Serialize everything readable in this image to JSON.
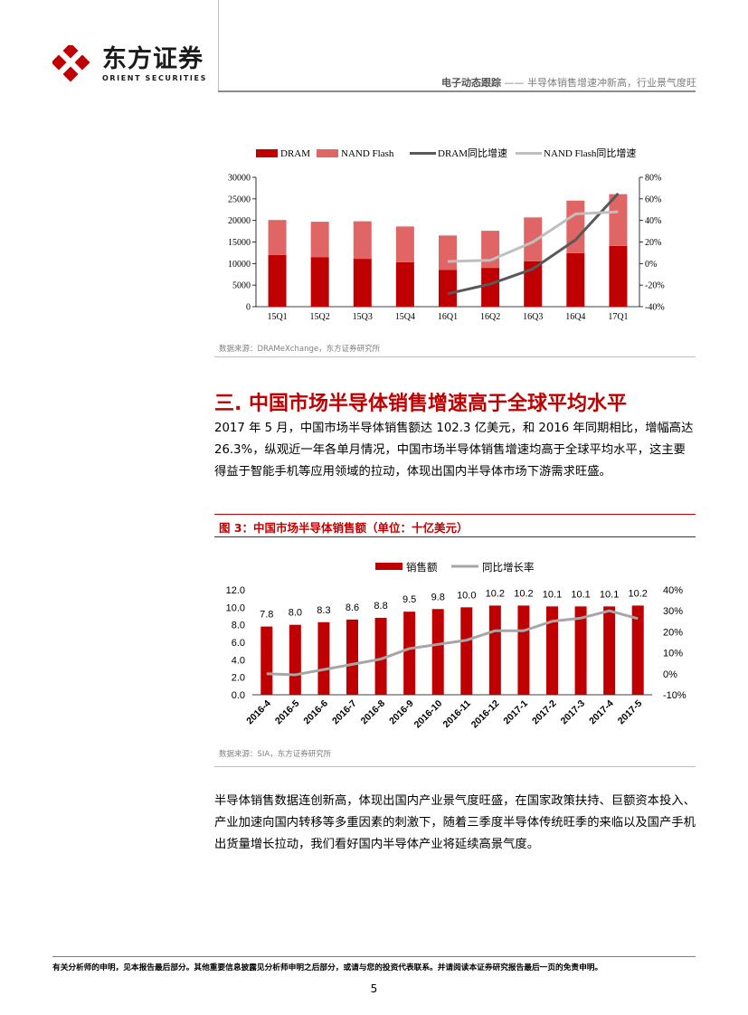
{
  "header": {
    "brand_cn": "东方证券",
    "brand_en": "ORIENT SECURITIES",
    "report_type": "电子动态跟踪",
    "report_subtitle": "—— 半导体销售增速冲新高，行业景气度旺"
  },
  "figure2": {
    "source": "数据来源：DRAMeXchange，东方证券研究所"
  },
  "section3": {
    "title": "三. 中国市场半导体销售增速高于全球平均水平",
    "paragraph": "2017 年 5 月，中国市场半导体销售额达 102.3 亿美元，和 2016 年同期相比，增幅高达 26.3%，纵观近一年各单月情况，中国市场半导体销售增速均高于全球平均水平，这主要得益于智能手机等应用领域的拉动，体现出国内半导体市场下游需求旺盛。"
  },
  "figure3": {
    "title": "图 3：中国市场半导体销售额（单位：十亿美元）",
    "source": "数据来源：SIA，东方证券研究所"
  },
  "closing_paragraph": "半导体销售数据连创新高，体现出国内产业景气度旺盛，在国家政策扶持、巨额资本投入、产业加速向国内转移等多重因素的刺激下，随着三季度半导体传统旺季的来临以及国产手机出货量增长拉动，我们看好国内半导体产业将延续高景气度。",
  "footer": {
    "disclaimer": "有关分析师的申明，见本报告最后部分。其他重要信息披露见分析师申明之后部分，或请与您的投资代表联系。并请阅读本证券研究报告最后一页的免责申明。",
    "page_number": "5"
  },
  "colors": {
    "brand_red": "#c00000",
    "dram_bar": "#c00000",
    "nand_bar": "#e06666",
    "dram_growth_line": "#595959",
    "nand_growth_line": "#bfbfbf",
    "sales_bar": "#c00000",
    "yoy_line": "#a6a6a6"
  },
  "chart_data": [
    {
      "type": "bar",
      "stacked": true,
      "categories": [
        "15Q1",
        "15Q2",
        "15Q3",
        "15Q4",
        "16Q1",
        "16Q2",
        "16Q3",
        "16Q4",
        "17Q1"
      ],
      "series": [
        {
          "name": "DRAM",
          "kind": "bar",
          "axis": "left",
          "values": [
            12000,
            11500,
            11100,
            10300,
            8500,
            9000,
            10500,
            12400,
            14100
          ]
        },
        {
          "name": "NAND Flash",
          "kind": "bar",
          "axis": "left",
          "values": [
            8100,
            8200,
            8700,
            8300,
            8000,
            8600,
            10200,
            12200,
            12000
          ]
        },
        {
          "name": "DRAM同比增速",
          "kind": "line",
          "axis": "right",
          "values": [
            null,
            null,
            null,
            null,
            -28,
            -19,
            -5,
            22,
            65
          ]
        },
        {
          "name": "NAND Flash同比增速",
          "kind": "line",
          "axis": "right",
          "values": [
            null,
            null,
            null,
            null,
            2,
            3,
            20,
            46,
            48
          ]
        }
      ],
      "ylim_left": [
        0,
        30000
      ],
      "yticks_left": [
        "0",
        "5000",
        "10000",
        "15000",
        "20000",
        "25000",
        "30000"
      ],
      "ylim_right": [
        -40,
        80
      ],
      "yticks_right": [
        "-40%",
        "-20%",
        "0%",
        "20%",
        "40%",
        "60%",
        "80%"
      ],
      "legend_position": "top",
      "grid": false
    },
    {
      "type": "bar",
      "categories": [
        "2016-4",
        "2016-5",
        "2016-6",
        "2016-7",
        "2016-8",
        "2016-9",
        "2016-10",
        "2016-11",
        "2016-12",
        "2017-1",
        "2017-2",
        "2017-3",
        "2017-4",
        "2017-5"
      ],
      "series": [
        {
          "name": "销售额",
          "kind": "bar",
          "axis": "left",
          "values": [
            7.8,
            8.0,
            8.3,
            8.6,
            8.8,
            9.5,
            9.8,
            10.0,
            10.2,
            10.2,
            10.1,
            10.1,
            10.1,
            10.2
          ],
          "labels": [
            "7.8",
            "8.0",
            "8.3",
            "8.6",
            "8.8",
            "9.5",
            "9.8",
            "10.0",
            "10.2",
            "10.2",
            "10.1",
            "10.1",
            "10.1",
            "10.2"
          ]
        },
        {
          "name": "同比增长率",
          "kind": "line",
          "axis": "right",
          "values": [
            0,
            -0.5,
            2,
            4.5,
            7,
            12,
            14,
            16,
            20.5,
            20.5,
            25,
            26.5,
            30,
            26.3
          ]
        }
      ],
      "ylim_left": [
        0,
        12
      ],
      "yticks_left": [
        "0.0",
        "2.0",
        "4.0",
        "6.0",
        "8.0",
        "10.0",
        "12.0"
      ],
      "ylim_right": [
        -10,
        40
      ],
      "yticks_right": [
        "-10%",
        "0%",
        "10%",
        "20%",
        "30%",
        "40%"
      ],
      "legend_position": "top",
      "grid": false
    }
  ]
}
